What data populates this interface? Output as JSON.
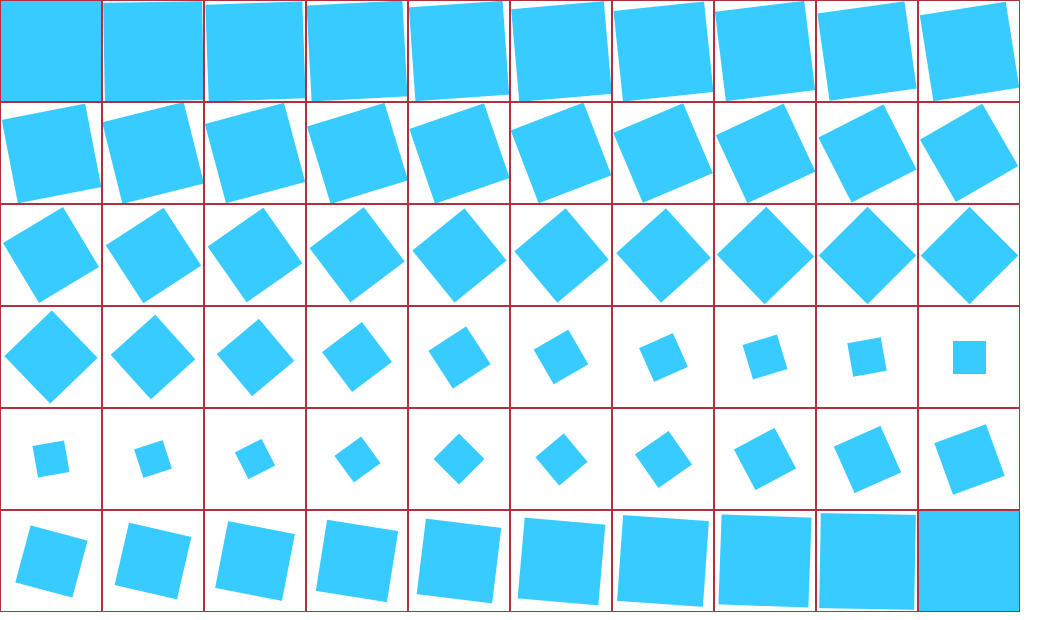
{
  "colors": {
    "square_fill": "#38cbff",
    "cell_border": "#b03040",
    "background": "#ffffff"
  },
  "frames": [
    {
      "rotation_deg": 0,
      "scale": 1.0
    },
    {
      "rotation_deg": -1,
      "scale": 0.985
    },
    {
      "rotation_deg": -2,
      "scale": 0.97
    },
    {
      "rotation_deg": -3,
      "scale": 0.955
    },
    {
      "rotation_deg": -4,
      "scale": 0.94
    },
    {
      "rotation_deg": -5,
      "scale": 0.925
    },
    {
      "rotation_deg": -6,
      "scale": 0.91
    },
    {
      "rotation_deg": -7,
      "scale": 0.895
    },
    {
      "rotation_deg": -8,
      "scale": 0.88
    },
    {
      "rotation_deg": -9,
      "scale": 0.865
    },
    {
      "rotation_deg": -11,
      "scale": 0.85
    },
    {
      "rotation_deg": -14,
      "scale": 0.835
    },
    {
      "rotation_deg": -15,
      "scale": 0.82
    },
    {
      "rotation_deg": -17,
      "scale": 0.805
    },
    {
      "rotation_deg": -19,
      "scale": 0.79
    },
    {
      "rotation_deg": -21,
      "scale": 0.775
    },
    {
      "rotation_deg": -23,
      "scale": 0.76
    },
    {
      "rotation_deg": -25,
      "scale": 0.745
    },
    {
      "rotation_deg": -27,
      "scale": 0.73
    },
    {
      "rotation_deg": -30,
      "scale": 0.715
    },
    {
      "rotation_deg": -31,
      "scale": 0.7
    },
    {
      "rotation_deg": -33,
      "scale": 0.69
    },
    {
      "rotation_deg": -35,
      "scale": 0.68
    },
    {
      "rotation_deg": -37,
      "scale": 0.675
    },
    {
      "rotation_deg": -39,
      "scale": 0.67
    },
    {
      "rotation_deg": -40,
      "scale": 0.67
    },
    {
      "rotation_deg": -42,
      "scale": 0.67
    },
    {
      "rotation_deg": -44,
      "scale": 0.69
    },
    {
      "rotation_deg": -45,
      "scale": 0.69
    },
    {
      "rotation_deg": -45,
      "scale": 0.69
    },
    {
      "rotation_deg": -44,
      "scale": 0.66
    },
    {
      "rotation_deg": -42,
      "scale": 0.6
    },
    {
      "rotation_deg": -40,
      "scale": 0.55
    },
    {
      "rotation_deg": -37,
      "scale": 0.5
    },
    {
      "rotation_deg": -33,
      "scale": 0.45
    },
    {
      "rotation_deg": -30,
      "scale": 0.4
    },
    {
      "rotation_deg": -24,
      "scale": 0.37
    },
    {
      "rotation_deg": -17,
      "scale": 0.36
    },
    {
      "rotation_deg": -10,
      "scale": 0.34
    },
    {
      "rotation_deg": 0,
      "scale": 0.33
    },
    {
      "rotation_deg": -10,
      "scale": 0.32
    },
    {
      "rotation_deg": -18,
      "scale": 0.3
    },
    {
      "rotation_deg": -27,
      "scale": 0.3
    },
    {
      "rotation_deg": -36,
      "scale": 0.33
    },
    {
      "rotation_deg": -45,
      "scale": 0.36
    },
    {
      "rotation_deg": -40,
      "scale": 0.37
    },
    {
      "rotation_deg": -35,
      "scale": 0.41
    },
    {
      "rotation_deg": -28,
      "scale": 0.46
    },
    {
      "rotation_deg": -24,
      "scale": 0.51
    },
    {
      "rotation_deg": -20,
      "scale": 0.55
    },
    {
      "rotation_deg": 15,
      "scale": 0.59
    },
    {
      "rotation_deg": 13,
      "scale": 0.64
    },
    {
      "rotation_deg": 11,
      "scale": 0.68
    },
    {
      "rotation_deg": 9,
      "scale": 0.72
    },
    {
      "rotation_deg": 7,
      "scale": 0.76
    },
    {
      "rotation_deg": 5,
      "scale": 0.81
    },
    {
      "rotation_deg": 4,
      "scale": 0.86
    },
    {
      "rotation_deg": 2,
      "scale": 0.9
    },
    {
      "rotation_deg": 1,
      "scale": 0.95
    },
    {
      "rotation_deg": 0,
      "scale": 1.0
    }
  ]
}
